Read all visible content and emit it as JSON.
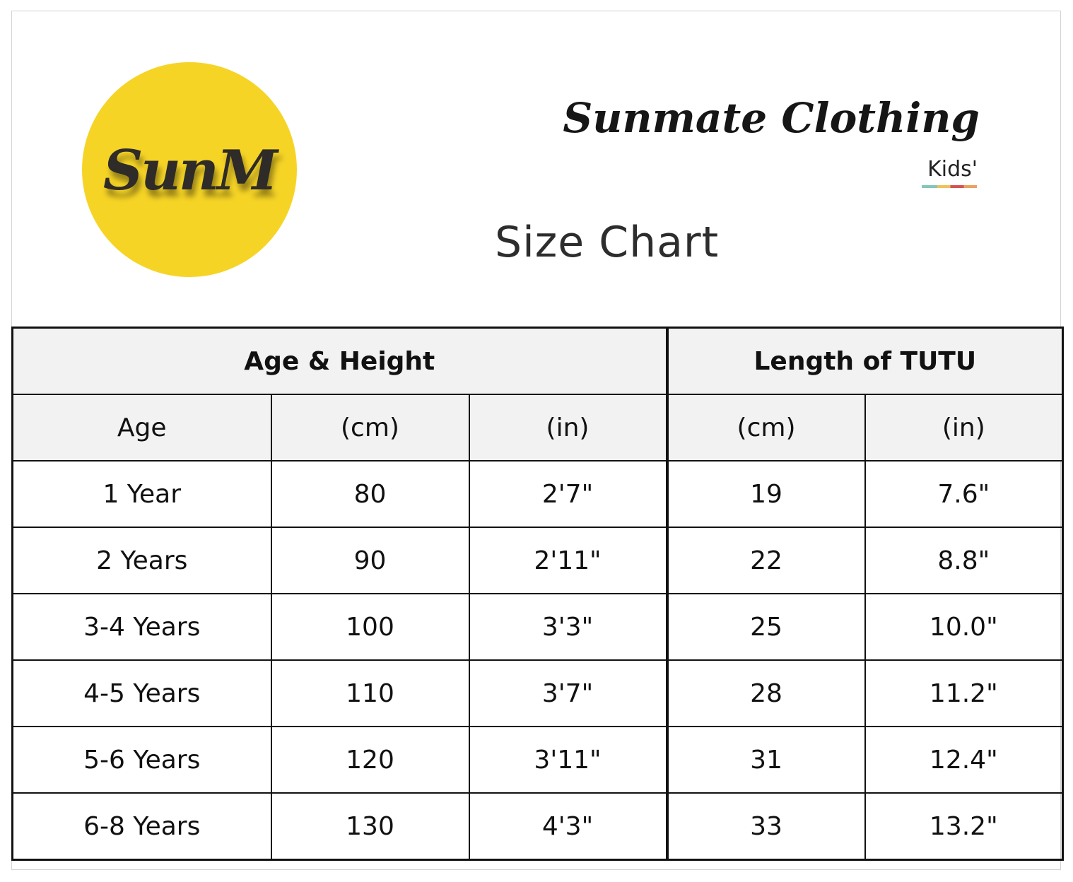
{
  "logo": {
    "text": "SunM",
    "color": "#f6d426"
  },
  "brand": {
    "name": "Sunmate Clothing",
    "sub": "Kids'"
  },
  "title": "Size Chart",
  "table": {
    "group_headers": [
      "Age & Height",
      "Length of TUTU"
    ],
    "column_headers": [
      "Age",
      "(cm)",
      "(in)",
      "(cm)",
      "(in)"
    ],
    "rows": [
      {
        "age": "1 Year",
        "height_cm": "80",
        "height_in": "2'7\"",
        "tutu_cm": "19",
        "tutu_in": "7.6\""
      },
      {
        "age": "2 Years",
        "height_cm": "90",
        "height_in": "2'11\"",
        "tutu_cm": "22",
        "tutu_in": "8.8\""
      },
      {
        "age": "3-4 Years",
        "height_cm": "100",
        "height_in": "3'3\"",
        "tutu_cm": "25",
        "tutu_in": "10.0\""
      },
      {
        "age": "4-5 Years",
        "height_cm": "110",
        "height_in": "3'7\"",
        "tutu_cm": "28",
        "tutu_in": "11.2\""
      },
      {
        "age": "5-6 Years",
        "height_cm": "120",
        "height_in": "3'11\"",
        "tutu_cm": "31",
        "tutu_in": "12.4\""
      },
      {
        "age": "6-8 Years",
        "height_cm": "130",
        "height_in": "4'3\"",
        "tutu_cm": "33",
        "tutu_in": "13.2\""
      }
    ]
  }
}
